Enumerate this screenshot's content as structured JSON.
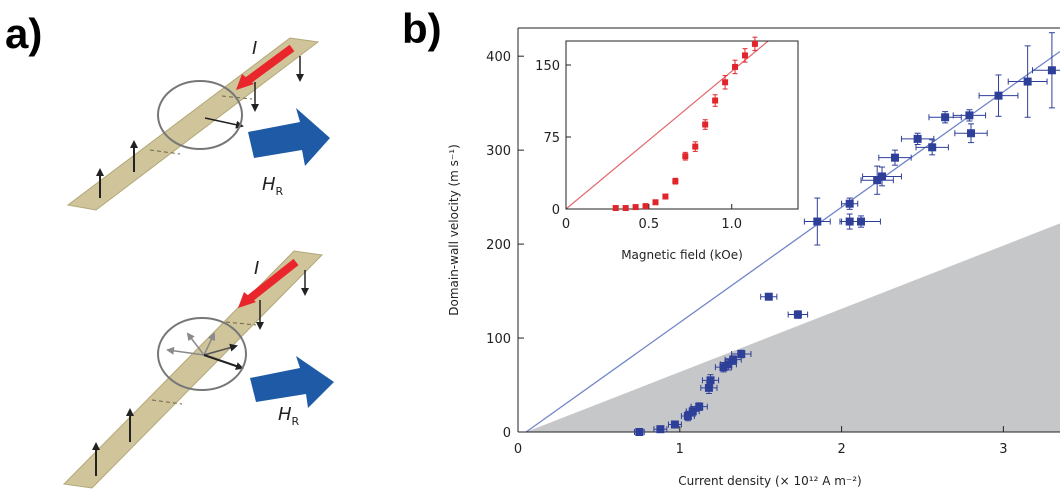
{
  "labels": {
    "panel_a": "a)",
    "panel_b": "b)"
  },
  "panel_a": {
    "current_label": "I",
    "field_label": "H",
    "field_subscript": "R",
    "colors": {
      "strip": "#cfc49a",
      "current_arrow": "#e8262b",
      "field_arrow": "#1f5aa6"
    }
  },
  "chart_data": [
    {
      "type": "scatter",
      "title": "",
      "xlabel": "Current density (× 10¹² A m⁻²)",
      "ylabel": "Domain-wall velocity (m s⁻¹)",
      "xlim": [
        0,
        3.35
      ],
      "ylim": [
        0,
        430
      ],
      "x_ticks": [
        "0",
        "1",
        "2",
        "3"
      ],
      "y_ticks": [
        "0",
        "100",
        "200",
        "300",
        "400"
      ],
      "grid": false,
      "colors": {
        "points": "#2e3f99",
        "fit_line": "#6f86c8",
        "shaded": "#c6c7c9"
      },
      "fit_line": {
        "x": [
          0.05,
          3.35
        ],
        "y": [
          0,
          405
        ]
      },
      "shaded_region": {
        "x": [
          0.05,
          3.35
        ],
        "y_top": [
          0,
          222
        ]
      },
      "points": [
        {
          "x": 0.75,
          "y": 0,
          "xerr": 0.03,
          "yerr": 0
        },
        {
          "x": 0.88,
          "y": 3,
          "xerr": 0.04,
          "yerr": 2
        },
        {
          "x": 0.97,
          "y": 8,
          "xerr": 0.04,
          "yerr": 3
        },
        {
          "x": 1.05,
          "y": 17,
          "xerr": 0.04,
          "yerr": 5
        },
        {
          "x": 1.08,
          "y": 22,
          "xerr": 0.04,
          "yerr": 5
        },
        {
          "x": 1.12,
          "y": 27,
          "xerr": 0.05,
          "yerr": 4
        },
        {
          "x": 1.18,
          "y": 47,
          "xerr": 0.05,
          "yerr": 6
        },
        {
          "x": 1.19,
          "y": 55,
          "xerr": 0.05,
          "yerr": 6
        },
        {
          "x": 1.27,
          "y": 69,
          "xerr": 0.05,
          "yerr": 5
        },
        {
          "x": 1.3,
          "y": 72,
          "xerr": 0.05,
          "yerr": 6
        },
        {
          "x": 1.33,
          "y": 77,
          "xerr": 0.05,
          "yerr": 4
        },
        {
          "x": 1.38,
          "y": 83,
          "xerr": 0.06,
          "yerr": 4
        },
        {
          "x": 1.55,
          "y": 144,
          "xerr": 0.05,
          "yerr": 3
        },
        {
          "x": 1.73,
          "y": 125,
          "xerr": 0.06,
          "yerr": 4
        },
        {
          "x": 1.85,
          "y": 224,
          "xerr": 0.08,
          "yerr": 25
        },
        {
          "x": 2.05,
          "y": 243,
          "xerr": 0.05,
          "yerr": 6
        },
        {
          "x": 2.05,
          "y": 224,
          "xerr": 0.06,
          "yerr": 8
        },
        {
          "x": 2.12,
          "y": 224,
          "xerr": 0.12,
          "yerr": 6
        },
        {
          "x": 2.22,
          "y": 268,
          "xerr": 0.1,
          "yerr": 15
        },
        {
          "x": 2.25,
          "y": 272,
          "xerr": 0.12,
          "yerr": 10
        },
        {
          "x": 2.33,
          "y": 292,
          "xerr": 0.1,
          "yerr": 8
        },
        {
          "x": 2.47,
          "y": 312,
          "xerr": 0.1,
          "yerr": 6
        },
        {
          "x": 2.56,
          "y": 303,
          "xerr": 0.1,
          "yerr": 8
        },
        {
          "x": 2.64,
          "y": 335,
          "xerr": 0.1,
          "yerr": 6
        },
        {
          "x": 2.79,
          "y": 337,
          "xerr": 0.1,
          "yerr": 6
        },
        {
          "x": 2.8,
          "y": 318,
          "xerr": 0.1,
          "yerr": 10
        },
        {
          "x": 2.97,
          "y": 358,
          "xerr": 0.12,
          "yerr": 22
        },
        {
          "x": 3.15,
          "y": 373,
          "xerr": 0.12,
          "yerr": 38
        },
        {
          "x": 3.3,
          "y": 385,
          "xerr": 0.12,
          "yerr": 40
        }
      ]
    },
    {
      "type": "scatter",
      "title": "",
      "xlabel": "Magnetic field (kOe)",
      "ylabel": "",
      "xlim": [
        0,
        1.4
      ],
      "ylim": [
        0,
        175
      ],
      "x_ticks": [
        "0",
        "0.5",
        "1.0"
      ],
      "y_ticks": [
        "0",
        "75",
        "150"
      ],
      "grid": false,
      "colors": {
        "points": "#e0262b",
        "fit_line": "#e46a6e"
      },
      "fit_line": {
        "x": [
          0,
          1.22
        ],
        "y": [
          0,
          175
        ]
      },
      "points": [
        {
          "x": 0.3,
          "y": 1,
          "yerr": 0
        },
        {
          "x": 0.36,
          "y": 1,
          "yerr": 0
        },
        {
          "x": 0.42,
          "y": 2,
          "yerr": 0
        },
        {
          "x": 0.48,
          "y": 3,
          "yerr": 1
        },
        {
          "x": 0.54,
          "y": 7,
          "yerr": 2
        },
        {
          "x": 0.6,
          "y": 13,
          "yerr": 2
        },
        {
          "x": 0.66,
          "y": 29,
          "yerr": 3
        },
        {
          "x": 0.72,
          "y": 55,
          "yerr": 4
        },
        {
          "x": 0.78,
          "y": 65,
          "yerr": 5
        },
        {
          "x": 0.84,
          "y": 88,
          "yerr": 5
        },
        {
          "x": 0.9,
          "y": 113,
          "yerr": 6
        },
        {
          "x": 0.96,
          "y": 132,
          "yerr": 7
        },
        {
          "x": 1.02,
          "y": 148,
          "yerr": 7
        },
        {
          "x": 1.08,
          "y": 160,
          "yerr": 7
        },
        {
          "x": 1.14,
          "y": 172,
          "yerr": 7
        }
      ]
    }
  ]
}
